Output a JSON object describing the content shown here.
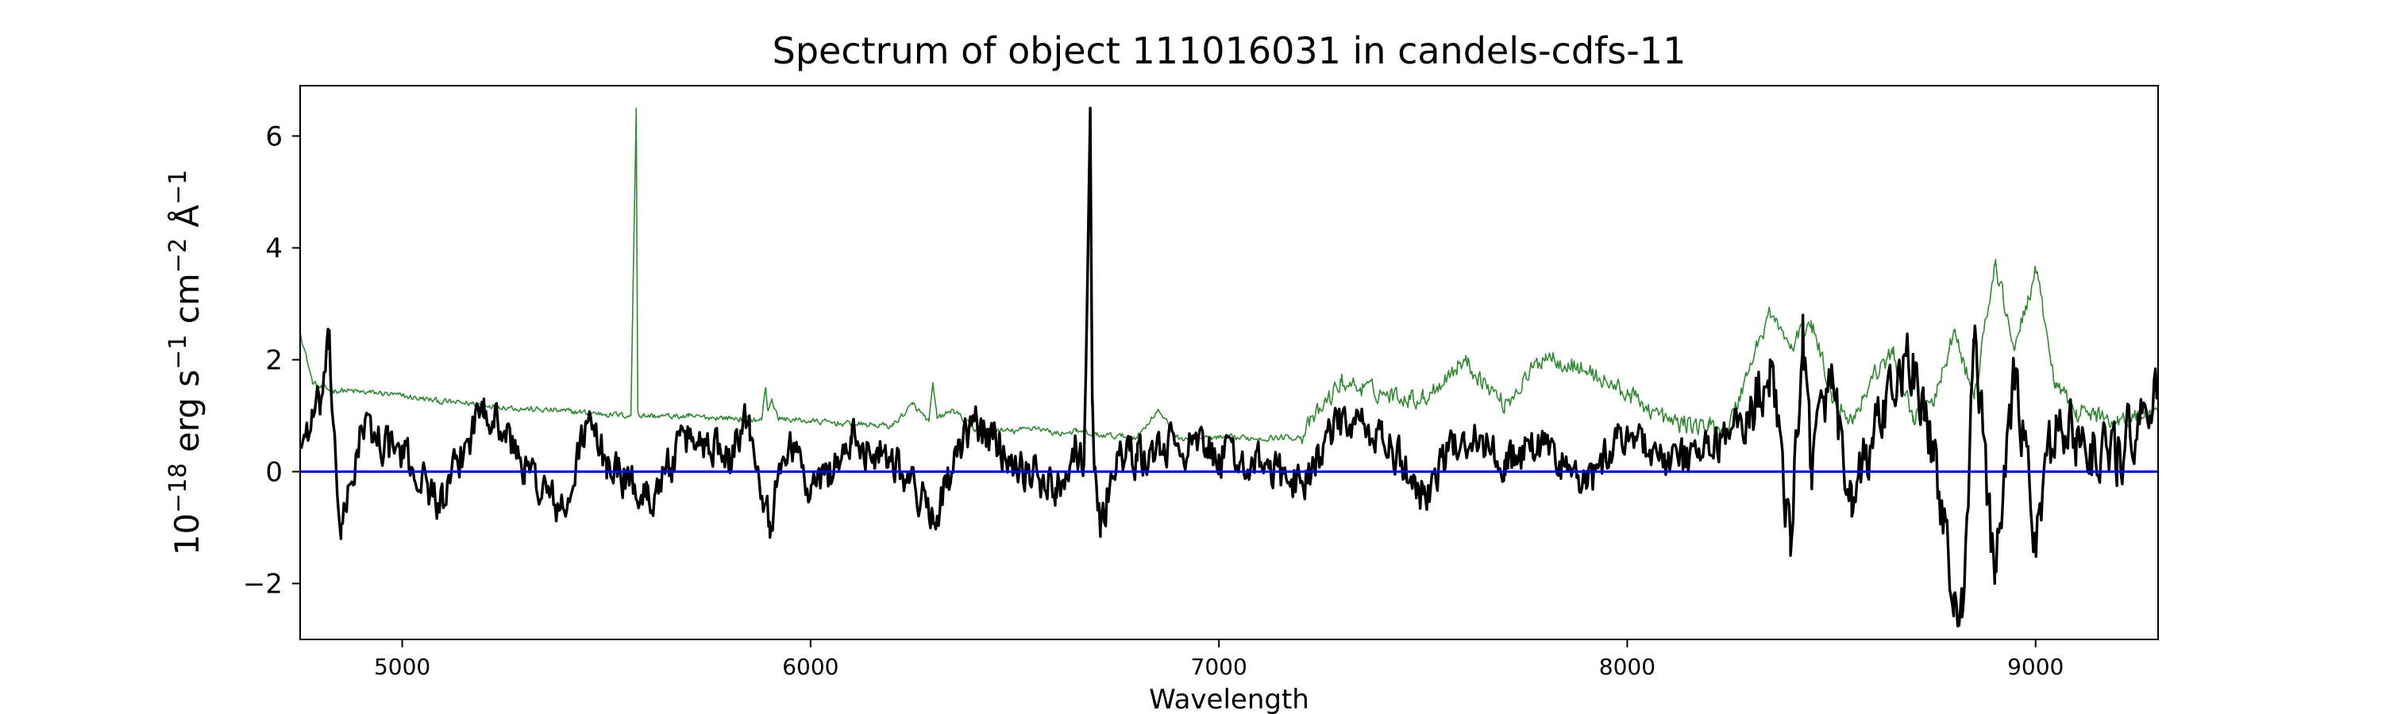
{
  "chart_data": {
    "type": "line",
    "title": "Spectrum of object 111016031 in candels-cdfs-11",
    "xlabel": "Wavelength",
    "ylabel": "10^{-18} erg s^{-1} cm^{-2} Å^{-1}",
    "xlim": [
      4750,
      9300
    ],
    "ylim": [
      -3.0,
      6.9
    ],
    "xticks": [
      5000,
      6000,
      7000,
      8000,
      9000
    ],
    "yticks": [
      -2,
      0,
      2,
      4,
      6
    ],
    "grid": false,
    "series": [
      {
        "color": "#2e8b2e",
        "style": "noise",
        "x": [
          4750,
          4760,
          4780,
          4800,
          4830,
          4860,
          4900,
          4950,
          5000,
          5050,
          5100,
          5200,
          5300,
          5400,
          5500,
          5560,
          5573,
          5577,
          5581,
          5590,
          5700,
          5800,
          5880,
          5890,
          5895,
          5905,
          5920,
          6000,
          6100,
          6200,
          6250,
          6290,
          6300,
          6310,
          6350,
          6400,
          6500,
          6550,
          6600,
          6650,
          6700,
          6800,
          6850,
          6900,
          7000,
          7100,
          7200,
          7300,
          7400,
          7500,
          7600,
          7700,
          7800,
          7900,
          8000,
          8100,
          8200,
          8250,
          8300,
          8350,
          8400,
          8450,
          8500,
          8550,
          8600,
          8650,
          8700,
          8750,
          8800,
          8850,
          8900,
          8950,
          9000,
          9050,
          9100,
          9200,
          9300
        ],
        "values": [
          2.5,
          2.2,
          1.6,
          1.5,
          1.45,
          1.45,
          1.42,
          1.4,
          1.35,
          1.3,
          1.25,
          1.2,
          1.12,
          1.08,
          1.03,
          1.0,
          6.5,
          1.1,
          1.0,
          1.0,
          0.98,
          0.96,
          0.92,
          1.5,
          1.1,
          1.3,
          0.95,
          0.9,
          0.85,
          0.82,
          1.2,
          0.9,
          1.55,
          0.95,
          1.1,
          0.75,
          0.72,
          0.8,
          0.68,
          0.72,
          0.65,
          0.62,
          1.1,
          0.6,
          0.6,
          0.6,
          0.62,
          1.6,
          1.4,
          1.3,
          2.0,
          1.2,
          2.1,
          1.8,
          1.4,
          0.9,
          0.8,
          0.8,
          1.9,
          2.85,
          2.2,
          2.7,
          1.4,
          0.9,
          1.7,
          2.1,
          1.0,
          1.2,
          2.5,
          1.3,
          3.7,
          2.2,
          3.6,
          1.5,
          1.1,
          0.9,
          1.1
        ],
        "approx_band": [
          0.4,
          0.6
        ]
      },
      {
        "color": "#000000",
        "style": "noise",
        "x": [
          4750,
          4800,
          4820,
          4850,
          4900,
          5000,
          5100,
          5200,
          5300,
          5400,
          5450,
          5500,
          5600,
          5700,
          5800,
          5850,
          5900,
          5950,
          6000,
          6100,
          6200,
          6300,
          6400,
          6500,
          6600,
          6650,
          6670,
          6685,
          6690,
          6695,
          6710,
          6750,
          6800,
          6900,
          7000,
          7100,
          7200,
          7300,
          7400,
          7500,
          7600,
          7700,
          7800,
          7900,
          8000,
          8100,
          8200,
          8300,
          8350,
          8400,
          8430,
          8450,
          8500,
          8550,
          8600,
          8650,
          8700,
          8750,
          8800,
          8820,
          8850,
          8900,
          8950,
          9000,
          9050,
          9100,
          9200,
          9300
        ],
        "values": [
          0.5,
          1.2,
          2.2,
          -1.2,
          0.8,
          0.3,
          -0.6,
          1.3,
          0.1,
          -0.8,
          0.9,
          0.2,
          -0.5,
          0.6,
          0.4,
          1.0,
          -0.9,
          0.7,
          -0.4,
          0.5,
          0.3,
          -0.8,
          0.9,
          0.2,
          -0.3,
          0.5,
          0.2,
          6.5,
          1.2,
          0.0,
          -1.0,
          0.3,
          0.2,
          0.5,
          0.3,
          0.1,
          -0.2,
          0.9,
          0.6,
          -0.4,
          0.7,
          0.2,
          0.5,
          -0.3,
          0.8,
          0.1,
          0.4,
          1.0,
          2.0,
          -1.5,
          2.8,
          0.2,
          1.5,
          -0.8,
          0.6,
          1.3,
          2.1,
          0.2,
          -2.2,
          -2.6,
          2.4,
          -2.0,
          1.7,
          -1.2,
          1.0,
          0.5,
          0.3,
          1.4
        ],
        "approx_band": [
          -1.2,
          1.2
        ]
      },
      {
        "color": "#0000ff",
        "style": "flat",
        "x": [
          4750,
          9300
        ],
        "values": [
          0,
          0
        ]
      }
    ]
  }
}
